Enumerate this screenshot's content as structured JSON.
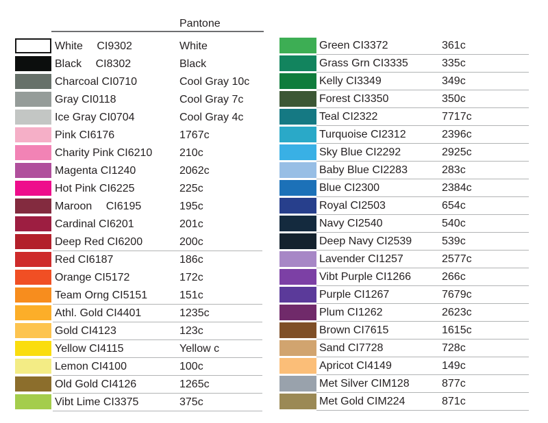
{
  "header": {
    "pantone_label": "Pantone"
  },
  "left_column": {
    "rows": [
      {
        "name": "White",
        "code": "CI9302",
        "pantone": "White",
        "color": "#ffffff",
        "border": true,
        "wide_gap": true,
        "line": false
      },
      {
        "name": "Black",
        "code": "CI8302",
        "pantone": "Black",
        "color": "#0c0e0d",
        "border": false,
        "wide_gap": true,
        "line": false
      },
      {
        "name": "Charcoal",
        "code": "CI0710",
        "pantone": "Cool Gray 10c",
        "color": "#67716a",
        "border": false,
        "wide_gap": false,
        "line": false
      },
      {
        "name": "Gray",
        "code": "CI0118",
        "pantone": "Cool Gray 7c",
        "color": "#959c99",
        "border": false,
        "wide_gap": false,
        "line": false
      },
      {
        "name": "Ice Gray",
        "code": "CI0704",
        "pantone": "Cool Gray 4c",
        "color": "#c3c6c4",
        "border": false,
        "wide_gap": false,
        "line": false
      },
      {
        "name": "Pink",
        "code": "CI6176",
        "pantone": "1767c",
        "color": "#f5afc7",
        "border": false,
        "wide_gap": false,
        "line": false
      },
      {
        "name": "Charity Pink",
        "code": "CI6210",
        "pantone": "210c",
        "color": "#f283b5",
        "border": false,
        "wide_gap": false,
        "line": false
      },
      {
        "name": "Magenta",
        "code": "CI1240",
        "pantone": "2062c",
        "color": "#b04f9c",
        "border": false,
        "wide_gap": false,
        "line": false
      },
      {
        "name": "Hot Pink",
        "code": "CI6225",
        "pantone": "225c",
        "color": "#ee0d8c",
        "border": false,
        "wide_gap": false,
        "line": false
      },
      {
        "name": "Maroon",
        "code": "CI6195",
        "pantone": "195c",
        "color": "#832b3f",
        "border": false,
        "wide_gap": true,
        "line": false
      },
      {
        "name": "Cardinal",
        "code": "CI6201",
        "pantone": "201c",
        "color": "#9d1e41",
        "border": false,
        "wide_gap": false,
        "line": false
      },
      {
        "name": "Deep Red",
        "code": "CI6200",
        "pantone": "200c",
        "color": "#b3202b",
        "border": false,
        "wide_gap": false,
        "line": true
      },
      {
        "name": "Red",
        "code": "CI6187",
        "pantone": "186c",
        "color": "#ce2b2b",
        "border": false,
        "wide_gap": false,
        "line": false
      },
      {
        "name": "Orange",
        "code": "CI5172",
        "pantone": "172c",
        "color": "#f04f24",
        "border": false,
        "wide_gap": false,
        "line": false
      },
      {
        "name": "Team Orng",
        "code": "CI5151",
        "pantone": "151c",
        "color": "#f78d1e",
        "border": false,
        "wide_gap": false,
        "line": true
      },
      {
        "name": "Athl. Gold",
        "code": "CI4401",
        "pantone": "1235c",
        "color": "#fcae29",
        "border": false,
        "wide_gap": false,
        "line": true
      },
      {
        "name": "Gold",
        "code": "CI4123",
        "pantone": "123c",
        "color": "#fdc44f",
        "border": false,
        "wide_gap": false,
        "line": true
      },
      {
        "name": "Yellow",
        "code": "CI4115",
        "pantone": "Yellow c",
        "color": "#fadd0e",
        "border": false,
        "wide_gap": false,
        "line": true
      },
      {
        "name": "Lemon",
        "code": "CI4100",
        "pantone": "100c",
        "color": "#f3ec85",
        "border": false,
        "wide_gap": false,
        "line": true
      },
      {
        "name": "Old Gold",
        "code": "CI4126",
        "pantone": "1265c",
        "color": "#8c6e2c",
        "border": false,
        "wide_gap": false,
        "line": true
      },
      {
        "name": "Vibt Lime",
        "code": "CI3375",
        "pantone": "375c",
        "color": "#a4cd4c",
        "border": false,
        "wide_gap": false,
        "line": true
      }
    ]
  },
  "right_column": {
    "rows": [
      {
        "name": "Green",
        "code": "CI3372",
        "pantone": "361c",
        "color": "#3dae54",
        "border": false,
        "wide_gap": false,
        "line": true
      },
      {
        "name": "Grass Grn",
        "code": "CI3335",
        "pantone": "335c",
        "color": "#12845e",
        "border": false,
        "wide_gap": false,
        "line": true
      },
      {
        "name": "Kelly",
        "code": "CI3349",
        "pantone": "349c",
        "color": "#0f7c3c",
        "border": false,
        "wide_gap": false,
        "line": true
      },
      {
        "name": "Forest",
        "code": "CI3350",
        "pantone": "350c",
        "color": "#3c5735",
        "border": false,
        "wide_gap": false,
        "line": true
      },
      {
        "name": "Teal",
        "code": "CI2322",
        "pantone": "7717c",
        "color": "#157983",
        "border": false,
        "wide_gap": false,
        "line": true
      },
      {
        "name": "Turquoise",
        "code": "CI2312",
        "pantone": "2396c",
        "color": "#2aa9c8",
        "border": false,
        "wide_gap": false,
        "line": true
      },
      {
        "name": "Sky Blue",
        "code": "CI2292",
        "pantone": "2925c",
        "color": "#39b0e5",
        "border": false,
        "wide_gap": false,
        "line": true
      },
      {
        "name": "Baby Blue",
        "code": "CI2283",
        "pantone": "283c",
        "color": "#97bee5",
        "border": false,
        "wide_gap": false,
        "line": true
      },
      {
        "name": "Blue",
        "code": "CI2300",
        "pantone": "2384c",
        "color": "#1c71b8",
        "border": false,
        "wide_gap": false,
        "line": true
      },
      {
        "name": "Royal",
        "code": "CI2503",
        "pantone": "654c",
        "color": "#273f8c",
        "border": false,
        "wide_gap": false,
        "line": true
      },
      {
        "name": "Navy",
        "code": "CI2540",
        "pantone": "540c",
        "color": "#142a3e",
        "border": false,
        "wide_gap": false,
        "line": true
      },
      {
        "name": "Deep Navy",
        "code": "CI2539",
        "pantone": "539c",
        "color": "#14222e",
        "border": false,
        "wide_gap": false,
        "line": true
      },
      {
        "name": "Lavender",
        "code": "CI1257",
        "pantone": "2577c",
        "color": "#a787c6",
        "border": false,
        "wide_gap": false,
        "line": true
      },
      {
        "name": "Vibt Purple",
        "code": "CI1266",
        "pantone": "266c",
        "color": "#7c40a5",
        "border": false,
        "wide_gap": false,
        "line": true
      },
      {
        "name": "Purple",
        "code": "CI1267",
        "pantone": "7679c",
        "color": "#5b3a9a",
        "border": false,
        "wide_gap": false,
        "line": true
      },
      {
        "name": "Plum",
        "code": "CI1262",
        "pantone": "2623c",
        "color": "#702a6a",
        "border": false,
        "wide_gap": false,
        "line": true
      },
      {
        "name": "Brown",
        "code": "CI7615",
        "pantone": "1615c",
        "color": "#7f4f27",
        "border": false,
        "wide_gap": false,
        "line": true
      },
      {
        "name": "Sand",
        "code": "CI7728",
        "pantone": "728c",
        "color": "#d1a46f",
        "border": false,
        "wide_gap": false,
        "line": true
      },
      {
        "name": "Apricot",
        "code": "CI4149",
        "pantone": "149c",
        "color": "#fbbe78",
        "border": false,
        "wide_gap": false,
        "line": true
      },
      {
        "name": "Met Silver",
        "code": "CIM128",
        "pantone": "877c",
        "color": "#99a2ac",
        "border": false,
        "wide_gap": false,
        "line": true
      },
      {
        "name": "Met Gold",
        "code": "CIM224",
        "pantone": "871c",
        "color": "#9b8955",
        "border": false,
        "wide_gap": false,
        "line": true
      }
    ]
  }
}
